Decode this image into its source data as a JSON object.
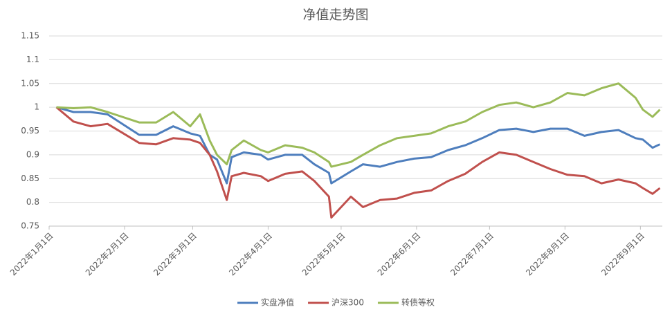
{
  "chart_data": {
    "type": "line",
    "title": "净值走势图",
    "x": [
      "2022-01-04",
      "2022-01-11",
      "2022-01-18",
      "2022-01-25",
      "2022-02-07",
      "2022-02-14",
      "2022-02-21",
      "2022-02-28",
      "2022-03-04",
      "2022-03-08",
      "2022-03-11",
      "2022-03-15",
      "2022-03-17",
      "2022-03-22",
      "2022-03-29",
      "2022-04-01",
      "2022-04-08",
      "2022-04-15",
      "2022-04-20",
      "2022-04-26",
      "2022-04-27",
      "2022-05-05",
      "2022-05-10",
      "2022-05-17",
      "2022-05-24",
      "2022-05-31",
      "2022-06-07",
      "2022-06-14",
      "2022-06-21",
      "2022-06-28",
      "2022-07-05",
      "2022-07-12",
      "2022-07-19",
      "2022-07-26",
      "2022-08-02",
      "2022-08-09",
      "2022-08-16",
      "2022-08-23",
      "2022-08-30",
      "2022-09-02",
      "2022-09-06",
      "2022-09-09"
    ],
    "series": [
      {
        "name": "实盘净值",
        "color": "#4e7ebd",
        "values": [
          1.0,
          0.99,
          0.99,
          0.985,
          0.942,
          0.942,
          0.96,
          0.945,
          0.94,
          0.9,
          0.89,
          0.84,
          0.895,
          0.905,
          0.9,
          0.89,
          0.9,
          0.9,
          0.88,
          0.862,
          0.84,
          0.865,
          0.88,
          0.875,
          0.885,
          0.892,
          0.895,
          0.91,
          0.92,
          0.935,
          0.952,
          0.955,
          0.948,
          0.955,
          0.955,
          0.94,
          0.948,
          0.952,
          0.935,
          0.932,
          0.915,
          0.922
        ]
      },
      {
        "name": "沪深300",
        "color": "#c0504d",
        "values": [
          1.0,
          0.97,
          0.96,
          0.965,
          0.925,
          0.922,
          0.935,
          0.932,
          0.925,
          0.9,
          0.865,
          0.805,
          0.855,
          0.862,
          0.855,
          0.845,
          0.86,
          0.865,
          0.845,
          0.812,
          0.768,
          0.812,
          0.79,
          0.805,
          0.808,
          0.82,
          0.825,
          0.845,
          0.86,
          0.885,
          0.905,
          0.9,
          0.885,
          0.87,
          0.858,
          0.855,
          0.84,
          0.848,
          0.84,
          0.83,
          0.818,
          0.83
        ]
      },
      {
        "name": "转债等权",
        "color": "#9bbb59",
        "values": [
          1.0,
          0.998,
          1.0,
          0.99,
          0.968,
          0.968,
          0.99,
          0.96,
          0.985,
          0.93,
          0.9,
          0.88,
          0.91,
          0.93,
          0.91,
          0.905,
          0.92,
          0.915,
          0.905,
          0.885,
          0.875,
          0.885,
          0.9,
          0.92,
          0.935,
          0.94,
          0.945,
          0.96,
          0.97,
          0.99,
          1.005,
          1.01,
          1.0,
          1.01,
          1.03,
          1.025,
          1.04,
          1.05,
          1.02,
          0.995,
          0.98,
          0.995
        ]
      }
    ],
    "xlim": [
      "2022-01-01",
      "2022-09-10"
    ],
    "xticks": [
      {
        "value": "2022-01-01",
        "label": "2022年1月1日"
      },
      {
        "value": "2022-02-01",
        "label": "2022年2月1日"
      },
      {
        "value": "2022-03-01",
        "label": "2022年3月1日"
      },
      {
        "value": "2022-04-01",
        "label": "2022年4月1日"
      },
      {
        "value": "2022-05-01",
        "label": "2022年5月1日"
      },
      {
        "value": "2022-06-01",
        "label": "2022年6月1日"
      },
      {
        "value": "2022-07-01",
        "label": "2022年7月1日"
      },
      {
        "value": "2022-08-01",
        "label": "2022年8月1日"
      },
      {
        "value": "2022-09-01",
        "label": "2022年9月1日"
      }
    ],
    "ylim": [
      0.75,
      1.15
    ],
    "yticks": [
      0.75,
      0.8,
      0.85,
      0.9,
      0.95,
      1,
      1.05,
      1.1,
      1.15
    ],
    "grid": true,
    "legend": "bottom"
  }
}
